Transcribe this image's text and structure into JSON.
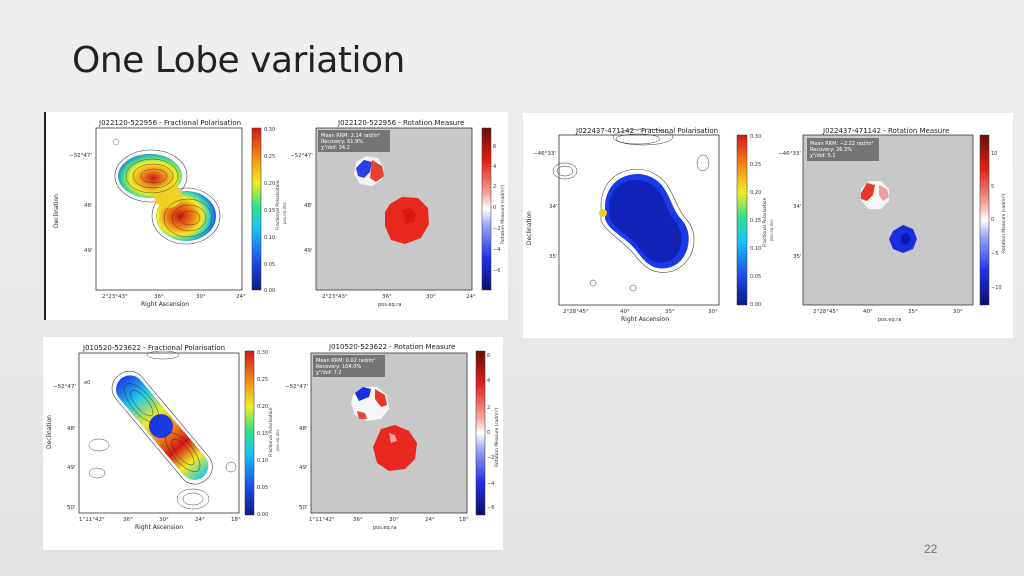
{
  "slide": {
    "title": "One Lobe variation",
    "page_number": "22"
  },
  "colors": {
    "background": "#e9e9e9",
    "rm_panel_bg": "#c8c8c8",
    "rm_positive": "#e8281e",
    "rm_negative": "#1a35e0",
    "fp_colormap": [
      "#0b1a80",
      "#1f4ff0",
      "#19c6f0",
      "#35e08a",
      "#f0ee24",
      "#f28a16",
      "#d41818"
    ],
    "rm_colormap": [
      "#0b0f6e",
      "#2030e6",
      "#9aa6f5",
      "#ffffff",
      "#f5a29a",
      "#e02014",
      "#6a0e08"
    ]
  },
  "figures": [
    {
      "fp_title": "J022120-522956 - Fractional Polarisation",
      "rm_title": "J022120-522956 - Rotation Measure",
      "dec_ticks": [
        "−52°47'",
        "48'",
        "49'"
      ],
      "fp_ra_ticks": [
        "2°23°43°",
        "36°",
        "30°",
        "24°"
      ],
      "rm_ra_ticks": [
        "2°23°43°",
        "36°",
        "30°",
        "24°"
      ],
      "fp_cbar_ticks": [
        "0.30",
        "0.25",
        "0.20",
        "0.15",
        "0.10",
        "0.05",
        "0.00"
      ],
      "rm_cbar_ticks": [
        "6",
        "4",
        "2",
        "0",
        "−2",
        "−4",
        "−6"
      ],
      "fp_xlabel": "Right Ascension",
      "fp_ylabel": "Declination",
      "rm_xlabel": "pos.eq.ra",
      "rm_ylabel": "pos.eq.dec",
      "fp_cbar_label": "Fractional Polarisation",
      "fp_cbar_sublabel": "pos.eq.dec",
      "rm_cbar_label": "Rotation Measure (rad/m²)",
      "stats": [
        "Mean RRM: 2.14 rad/m²",
        "Recovery: 61.9%",
        "χ²/dof: 34.2"
      ]
    },
    {
      "fp_title": "J022437-471142 - Fractional Polarisation",
      "rm_title": "J022437-471142 - Rotation Measure",
      "dec_ticks": [
        "−46°33'",
        "34'",
        "35'"
      ],
      "fp_ra_ticks": [
        "2°28°45°",
        "40°",
        "35°",
        "30°"
      ],
      "rm_ra_ticks": [
        "2°28°45°",
        "40°",
        "35°",
        "30°"
      ],
      "fp_cbar_ticks": [
        "0.30",
        "0.25",
        "0.20",
        "0.15",
        "0.10",
        "0.05",
        "0.00"
      ],
      "rm_cbar_ticks": [
        "10",
        "5",
        "0",
        "−5",
        "−10"
      ],
      "fp_xlabel": "Right Ascension",
      "fp_ylabel": "Declination",
      "rm_xlabel": "pos.eq.ra",
      "rm_ylabel": "pos.eq.dec",
      "fp_cbar_label": "Fractional Polarisation",
      "fp_cbar_sublabel": "pos.eq.dec",
      "rm_cbar_label": "Rotation Measure (rad/m²)",
      "stats": [
        "Mean RRM: −2.22 rad/m²",
        "Recovery: 26.3%",
        "χ²/dof: 5.1"
      ]
    },
    {
      "fp_title": "J010520-523622 - Fractional Polarisation",
      "rm_title": "J010520-523622 - Rotation Measure",
      "dec_ticks": [
        "−52°47'",
        "48'",
        "49'",
        "50'"
      ],
      "fp_ra_ticks": [
        "1°11°42°",
        "36°",
        "30°",
        "24°",
        "18°"
      ],
      "rm_ra_ticks": [
        "1°11°42°",
        "36°",
        "30°",
        "24°",
        "18°"
      ],
      "fp_cbar_ticks": [
        "0.30",
        "0.25",
        "0.20",
        "0.15",
        "0.10",
        "0.05",
        "0.00"
      ],
      "rm_cbar_ticks": [
        "6",
        "4",
        "2",
        "0",
        "−2",
        "−4",
        "−6"
      ],
      "fp_xlabel": "Right Ascension",
      "fp_ylabel": "Declination",
      "rm_xlabel": "pos.eq.ra",
      "rm_ylabel": "pos.eq.dec",
      "fp_cbar_label": "Fractional Polarisation",
      "fp_cbar_sublabel": "pos.eq.dec",
      "rm_cbar_label": "Rotation Measure (rad/m²)",
      "stats": [
        "Mean RRM: 0.02 rad/m²",
        "Recovery: 104.0%",
        "χ²/dof: 7.2"
      ]
    }
  ]
}
